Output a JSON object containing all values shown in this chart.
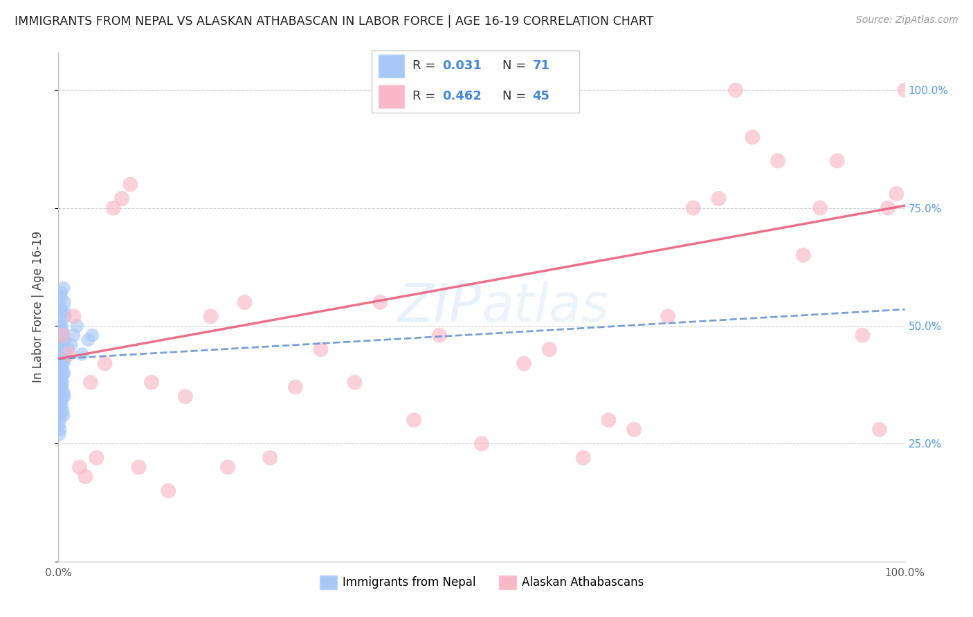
{
  "title": "IMMIGRANTS FROM NEPAL VS ALASKAN ATHABASCAN IN LABOR FORCE | AGE 16-19 CORRELATION CHART",
  "source": "Source: ZipAtlas.com",
  "ylabel": "In Labor Force | Age 16-19",
  "watermark": "ZIPatlas",
  "nepal_color": "#a8c8f8",
  "athabascan_color": "#f8b8c8",
  "nepal_line_color": "#6090d0",
  "athabascan_line_color": "#e86080",
  "nepal_trendline": [
    0.43,
    0.535
  ],
  "athabascan_trendline": [
    0.43,
    0.755
  ],
  "nepal_x": [
    0.003,
    0.006,
    0.002,
    0.008,
    0.001,
    0.004,
    0.007,
    0.003,
    0.005,
    0.002,
    0.006,
    0.001,
    0.004,
    0.003,
    0.007,
    0.002,
    0.005,
    0.001,
    0.006,
    0.003,
    0.008,
    0.002,
    0.004,
    0.001,
    0.005,
    0.003,
    0.007,
    0.002,
    0.004,
    0.001,
    0.006,
    0.003,
    0.002,
    0.005,
    0.001,
    0.004,
    0.003,
    0.007,
    0.002,
    0.005,
    0.001,
    0.006,
    0.003,
    0.002,
    0.004,
    0.001,
    0.005,
    0.003,
    0.007,
    0.002,
    0.004,
    0.001,
    0.006,
    0.003,
    0.002,
    0.005,
    0.001,
    0.004,
    0.003,
    0.007,
    0.002,
    0.005,
    0.001,
    0.006,
    0.012,
    0.018,
    0.022,
    0.015,
    0.028,
    0.035,
    0.04
  ],
  "nepal_y": [
    0.56,
    0.58,
    0.54,
    0.52,
    0.5,
    0.53,
    0.55,
    0.57,
    0.49,
    0.51,
    0.48,
    0.46,
    0.5,
    0.47,
    0.53,
    0.44,
    0.48,
    0.43,
    0.47,
    0.45,
    0.44,
    0.42,
    0.46,
    0.41,
    0.45,
    0.43,
    0.47,
    0.4,
    0.44,
    0.39,
    0.43,
    0.41,
    0.38,
    0.42,
    0.37,
    0.41,
    0.39,
    0.43,
    0.36,
    0.4,
    0.35,
    0.42,
    0.38,
    0.34,
    0.39,
    0.33,
    0.38,
    0.36,
    0.4,
    0.32,
    0.37,
    0.3,
    0.36,
    0.34,
    0.31,
    0.35,
    0.29,
    0.33,
    0.31,
    0.35,
    0.28,
    0.32,
    0.27,
    0.31,
    0.45,
    0.48,
    0.5,
    0.46,
    0.44,
    0.47,
    0.48
  ],
  "athabascan_x": [
    0.005,
    0.012,
    0.018,
    0.025,
    0.032,
    0.038,
    0.045,
    0.055,
    0.065,
    0.075,
    0.085,
    0.095,
    0.11,
    0.13,
    0.15,
    0.18,
    0.2,
    0.22,
    0.25,
    0.28,
    0.31,
    0.35,
    0.38,
    0.42,
    0.45,
    0.5,
    0.55,
    0.58,
    0.62,
    0.65,
    0.68,
    0.72,
    0.75,
    0.78,
    0.8,
    0.82,
    0.85,
    0.88,
    0.9,
    0.92,
    0.95,
    0.97,
    0.98,
    0.99,
    1.0
  ],
  "athabascan_y": [
    0.48,
    0.44,
    0.52,
    0.2,
    0.18,
    0.38,
    0.22,
    0.42,
    0.75,
    0.77,
    0.8,
    0.2,
    0.38,
    0.15,
    0.35,
    0.52,
    0.2,
    0.55,
    0.22,
    0.37,
    0.45,
    0.38,
    0.55,
    0.3,
    0.48,
    0.25,
    0.42,
    0.45,
    0.22,
    0.3,
    0.28,
    0.52,
    0.75,
    0.77,
    1.0,
    0.9,
    0.85,
    0.65,
    0.75,
    0.85,
    0.48,
    0.28,
    0.75,
    0.78,
    1.0
  ],
  "xlim": [
    0.0,
    1.0
  ],
  "ylim": [
    0.0,
    1.08
  ]
}
